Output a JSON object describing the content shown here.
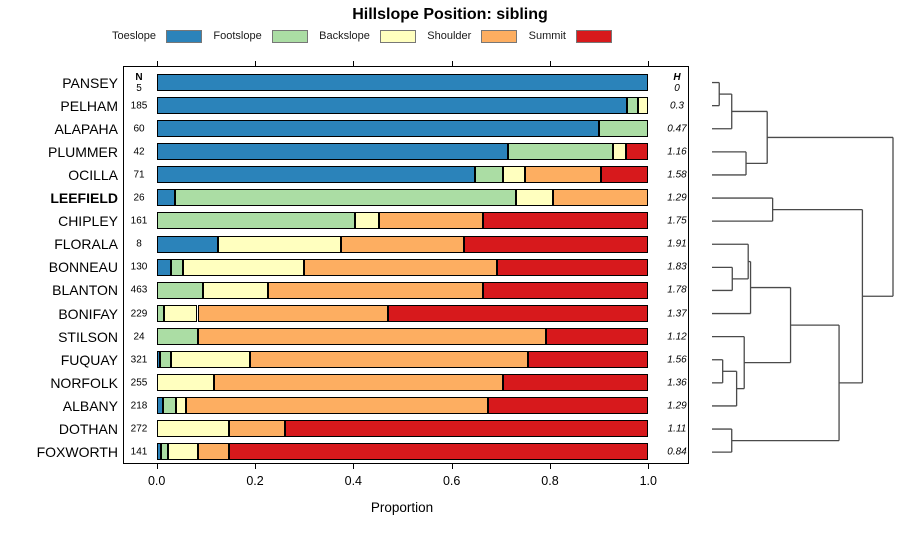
{
  "title": "Hillslope Position: sibling",
  "x_axis": {
    "label": "Proportion",
    "ticks": [
      "0.0",
      "0.2",
      "0.4",
      "0.6",
      "0.8",
      "1.0"
    ],
    "tick_values": [
      0,
      0.2,
      0.4,
      0.6,
      0.8,
      1.0
    ],
    "range": [
      0,
      1
    ]
  },
  "columns": {
    "n_header": "N",
    "h_header": "H"
  },
  "legend": [
    {
      "label": "Toeslope",
      "color": "#2B83BA"
    },
    {
      "label": "Footslope",
      "color": "#ABDDA4"
    },
    {
      "label": "Backslope",
      "color": "#FFFFBF"
    },
    {
      "label": "Shoulder",
      "color": "#FDAE61"
    },
    {
      "label": "Summit",
      "color": "#D7191C"
    }
  ],
  "chart_data": {
    "type": "bar",
    "orientation": "horizontal-stacked",
    "title": "Hillslope Position: sibling",
    "xlabel": "Proportion",
    "xlim": [
      0,
      1
    ],
    "categories": [
      "Toeslope",
      "Footslope",
      "Backslope",
      "Shoulder",
      "Summit"
    ],
    "series_colors": [
      "#2B83BA",
      "#ABDDA4",
      "#FFFFBF",
      "#FDAE61",
      "#D7191C"
    ],
    "rows": [
      {
        "name": "PANSEY",
        "bold": false,
        "n": 5,
        "h": "0",
        "values": [
          1.0,
          0,
          0,
          0,
          0
        ]
      },
      {
        "name": "PELHAM",
        "bold": false,
        "n": 185,
        "h": "0.3",
        "values": [
          0.957,
          0.022,
          0.021,
          0,
          0
        ]
      },
      {
        "name": "ALAPAHA",
        "bold": false,
        "n": 60,
        "h": "0.47",
        "values": [
          0.9,
          0.1,
          0,
          0,
          0
        ]
      },
      {
        "name": "PLUMMER",
        "bold": false,
        "n": 42,
        "h": "1.16",
        "values": [
          0.714,
          0.215,
          0.025,
          0,
          0.046
        ]
      },
      {
        "name": "OCILLA",
        "bold": false,
        "n": 71,
        "h": "1.58",
        "values": [
          0.648,
          0.057,
          0.044,
          0.155,
          0.096
        ]
      },
      {
        "name": "LEEFIELD",
        "bold": true,
        "n": 26,
        "h": "1.29",
        "values": [
          0.037,
          0.694,
          0.076,
          0.193,
          0
        ]
      },
      {
        "name": "CHIPLEY",
        "bold": false,
        "n": 161,
        "h": "1.75",
        "values": [
          0,
          0.404,
          0.049,
          0.211,
          0.336
        ]
      },
      {
        "name": "FLORALA",
        "bold": false,
        "n": 8,
        "h": "1.91",
        "values": [
          0.125,
          0,
          0.25,
          0.25,
          0.375
        ]
      },
      {
        "name": "BONNEAU",
        "bold": false,
        "n": 130,
        "h": "1.83",
        "values": [
          0.029,
          0.024,
          0.247,
          0.393,
          0.307
        ]
      },
      {
        "name": "BLANTON",
        "bold": false,
        "n": 463,
        "h": "1.78",
        "values": [
          0,
          0.094,
          0.133,
          0.436,
          0.337
        ]
      },
      {
        "name": "BONIFAY",
        "bold": false,
        "n": 229,
        "h": "1.37",
        "values": [
          0,
          0.014,
          0.069,
          0.388,
          0.529
        ]
      },
      {
        "name": "STILSON",
        "bold": false,
        "n": 24,
        "h": "1.12",
        "values": [
          0,
          0.085,
          0,
          0.707,
          0.208
        ]
      },
      {
        "name": "FUQUAY",
        "bold": false,
        "n": 321,
        "h": "1.56",
        "values": [
          0.007,
          0.022,
          0.161,
          0.566,
          0.244
        ]
      },
      {
        "name": "NORFOLK",
        "bold": false,
        "n": 255,
        "h": "1.36",
        "values": [
          0,
          0,
          0.117,
          0.588,
          0.295
        ]
      },
      {
        "name": "ALBANY",
        "bold": false,
        "n": 218,
        "h": "1.29",
        "values": [
          0.012,
          0.027,
          0.02,
          0.615,
          0.326
        ]
      },
      {
        "name": "DOTHAN",
        "bold": false,
        "n": 272,
        "h": "1.11",
        "values": [
          0,
          0,
          0.147,
          0.115,
          0.738
        ]
      },
      {
        "name": "FOXWORTH",
        "bold": false,
        "n": 141,
        "h": "0.84",
        "values": [
          0.008,
          0.016,
          0.061,
          0.063,
          0.852
        ]
      }
    ],
    "dendrogram": {
      "leaves": [
        "PANSEY",
        "PELHAM",
        "ALAPAHA",
        "PLUMMER",
        "OCILLA",
        "LEEFIELD",
        "CHIPLEY",
        "FLORALA",
        "BONNEAU",
        "BLANTON",
        "BONIFAY",
        "STILSON",
        "FUQUAY",
        "NORFOLK",
        "ALBANY",
        "DOTHAN",
        "FOXWORTH"
      ],
      "merges": [
        {
          "id": "M0",
          "a": "PANSEY",
          "b": "PELHAM",
          "h": 0.04
        },
        {
          "id": "M1",
          "a": "M0",
          "b": "ALAPAHA",
          "h": 0.109
        },
        {
          "id": "M2",
          "a": "PLUMMER",
          "b": "OCILLA",
          "h": 0.188
        },
        {
          "id": "M3",
          "a": "M1",
          "b": "M2",
          "h": 0.305
        },
        {
          "id": "M4",
          "a": "LEEFIELD",
          "b": "CHIPLEY",
          "h": 0.335
        },
        {
          "id": "M5",
          "a": "BONNEAU",
          "b": "BLANTON",
          "h": 0.112
        },
        {
          "id": "M6",
          "a": "FLORALA",
          "b": "M5",
          "h": 0.2
        },
        {
          "id": "M7",
          "a": "M6",
          "b": "BONIFAY",
          "h": 0.213
        },
        {
          "id": "M8",
          "a": "FUQUAY",
          "b": "NORFOLK",
          "h": 0.059
        },
        {
          "id": "M9",
          "a": "M8",
          "b": "ALBANY",
          "h": 0.136
        },
        {
          "id": "M10",
          "a": "STILSON",
          "b": "M9",
          "h": 0.178
        },
        {
          "id": "M11",
          "a": "M7",
          "b": "M10",
          "h": 0.434
        },
        {
          "id": "M12",
          "a": "DOTHAN",
          "b": "FOXWORTH",
          "h": 0.109
        },
        {
          "id": "M13",
          "a": "M11",
          "b": "M12",
          "h": 0.702
        },
        {
          "id": "M14",
          "a": "M4",
          "b": "M13",
          "h": 0.831
        },
        {
          "id": "M15",
          "a": "M3",
          "b": "M14",
          "h": 1.0
        }
      ]
    }
  }
}
